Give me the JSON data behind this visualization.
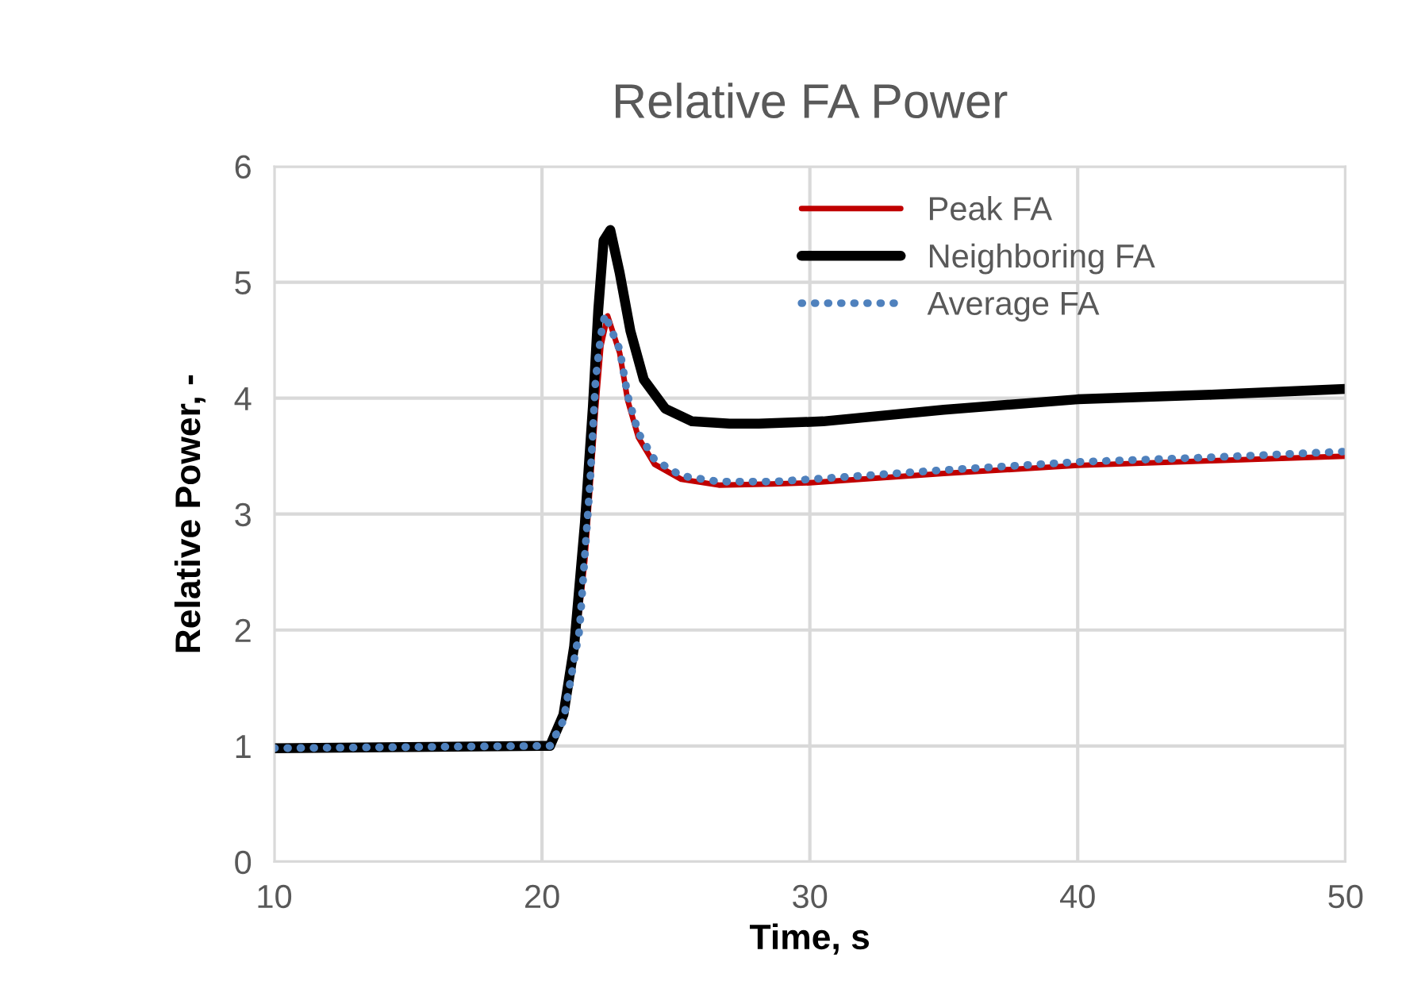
{
  "chart_data": {
    "type": "line",
    "title": "Relative FA Power",
    "xlabel": "Time, s",
    "ylabel": "Relative Power, -",
    "xlim": [
      10,
      50
    ],
    "xticks": [
      10,
      20,
      30,
      40,
      50
    ],
    "ylim": [
      0,
      6
    ],
    "yticks": [
      0,
      1,
      2,
      3,
      4,
      5,
      6
    ],
    "grid": true,
    "legend": "top right",
    "marker": "none",
    "series": [
      {
        "name": "Peak FA",
        "color": "#c00000",
        "line_style": "solid",
        "x": [
          21.2,
          21.6,
          22.0,
          22.2,
          22.45,
          22.9,
          23.2,
          23.6,
          24.2,
          25.2,
          26.6,
          28.6,
          30,
          35,
          40,
          45,
          50
        ],
        "values": [
          1.75,
          2.6,
          3.9,
          4.45,
          4.71,
          4.39,
          3.98,
          3.66,
          3.43,
          3.3,
          3.25,
          3.26,
          3.27,
          3.35,
          3.42,
          3.46,
          3.5
        ]
      },
      {
        "name": "Neighboring FA",
        "color": "#000000",
        "line_style": "solid",
        "x": [
          10,
          15,
          20,
          20.3,
          20.8,
          21.2,
          21.6,
          21.9,
          22.1,
          22.3,
          22.55,
          22.9,
          23.3,
          23.8,
          24.6,
          25.6,
          27.0,
          28.1,
          30.5,
          35,
          40,
          45,
          50
        ],
        "values": [
          0.98,
          0.99,
          1.0,
          1.0,
          1.27,
          1.86,
          2.92,
          3.93,
          4.76,
          5.36,
          5.45,
          5.08,
          4.58,
          4.16,
          3.91,
          3.8,
          3.78,
          3.78,
          3.8,
          3.9,
          3.99,
          4.03,
          4.08
        ]
      },
      {
        "name": "Average FA",
        "color": "#4f81bd",
        "line_style": "dotted",
        "x": [
          10,
          15,
          20,
          20.3,
          20.8,
          21.4,
          21.8,
          22.0,
          22.2,
          22.35,
          22.9,
          23.2,
          23.6,
          24.2,
          25.2,
          26.6,
          28.6,
          30,
          35,
          40,
          45,
          50
        ],
        "values": [
          0.98,
          0.99,
          1.0,
          1.0,
          1.22,
          2.0,
          3.29,
          4.16,
          4.55,
          4.72,
          4.42,
          4.02,
          3.7,
          3.47,
          3.33,
          3.28,
          3.28,
          3.3,
          3.38,
          3.45,
          3.49,
          3.54
        ]
      }
    ]
  }
}
